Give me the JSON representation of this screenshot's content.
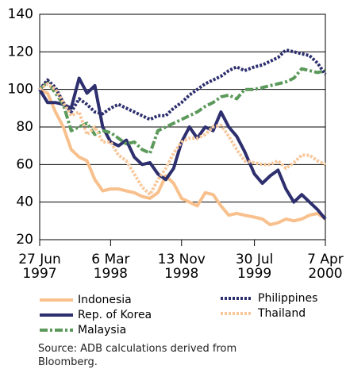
{
  "chart_data": {
    "type": "line",
    "x": [
      "1997-06-27",
      "1997-07-25",
      "1997-08-22",
      "1997-09-19",
      "1997-10-17",
      "1997-11-14",
      "1997-12-12",
      "1998-01-09",
      "1998-02-06",
      "1998-03-06",
      "1998-04-03",
      "1998-05-01",
      "1998-05-29",
      "1998-06-26",
      "1998-07-24",
      "1998-08-21",
      "1998-09-18",
      "1998-10-16",
      "1998-11-13",
      "1998-12-11",
      "1999-01-08",
      "1999-02-05",
      "1999-03-05",
      "1999-04-02",
      "1999-04-30",
      "1999-05-28",
      "1999-06-25",
      "1999-07-30",
      "1999-08-27",
      "1999-09-24",
      "1999-10-22",
      "1999-11-19",
      "1999-12-17",
      "2000-01-14",
      "2000-02-11",
      "2000-03-10",
      "2000-04-07"
    ],
    "series": [
      {
        "name": "Indonesia",
        "color": "#f8c08c",
        "style": "solid",
        "values": [
          100,
          98,
          88,
          80,
          68,
          64,
          62,
          52,
          46,
          47,
          47,
          46,
          45,
          43,
          42,
          45,
          54,
          50,
          42,
          40,
          38,
          45,
          44,
          38,
          33,
          34,
          33,
          32,
          31,
          28,
          29,
          31,
          30,
          31,
          33,
          34,
          31
        ]
      },
      {
        "name": "Rep. of Korea",
        "color": "#2d2f6e",
        "style": "solid",
        "values": [
          100,
          93,
          93,
          92,
          90,
          106,
          98,
          102,
          80,
          72,
          70,
          73,
          64,
          60,
          61,
          55,
          52,
          58,
          72,
          80,
          74,
          80,
          78,
          88,
          80,
          75,
          67,
          55,
          50,
          54,
          57,
          47,
          40,
          44,
          40,
          36,
          31
        ]
      },
      {
        "name": "Malaysia",
        "color": "#5b9a5b",
        "style": "dash-dot",
        "values": [
          100,
          104,
          98,
          92,
          78,
          80,
          82,
          76,
          78,
          77,
          74,
          71,
          72,
          68,
          66,
          78,
          80,
          82,
          84,
          86,
          88,
          91,
          93,
          96,
          97,
          95,
          100,
          100,
          101,
          102,
          103,
          104,
          106,
          111,
          110,
          109,
          110
        ]
      },
      {
        "name": "Philippines",
        "color": "#2d2f6e",
        "style": "dotted",
        "values": [
          100,
          105,
          101,
          93,
          88,
          95,
          92,
          88,
          87,
          90,
          92,
          90,
          88,
          86,
          84,
          86,
          86,
          90,
          93,
          97,
          100,
          103,
          105,
          107,
          110,
          112,
          110,
          112,
          113,
          115,
          117,
          121,
          120,
          119,
          118,
          114,
          108
        ]
      },
      {
        "name": "Thailand",
        "color": "#f8c79a",
        "style": "dotted",
        "values": [
          100,
          103,
          100,
          93,
          86,
          88,
          76,
          80,
          72,
          72,
          65,
          62,
          55,
          48,
          44,
          52,
          58,
          66,
          72,
          74,
          74,
          76,
          80,
          81,
          75,
          68,
          62,
          61,
          60,
          60,
          62,
          58,
          61,
          65,
          65,
          62,
          60
        ]
      }
    ],
    "xlim": [
      "1997-06-27",
      "2000-04-07"
    ],
    "xticks": [
      {
        "value": "1997-06-27",
        "label": "27 Jun\n1997"
      },
      {
        "value": "1998-03-06",
        "label": "6 Mar\n1998"
      },
      {
        "value": "1998-11-13",
        "label": "13 Nov\n1998"
      },
      {
        "value": "1999-07-30",
        "label": "30 Jul\n1999"
      },
      {
        "value": "2000-04-07",
        "label": "7 Apr\n2000"
      }
    ],
    "ylim": [
      20,
      140
    ],
    "yticks": [
      20,
      40,
      60,
      80,
      100,
      120,
      140
    ],
    "grid": true,
    "source": "Source: ADB calculations derived from Bloomberg."
  }
}
